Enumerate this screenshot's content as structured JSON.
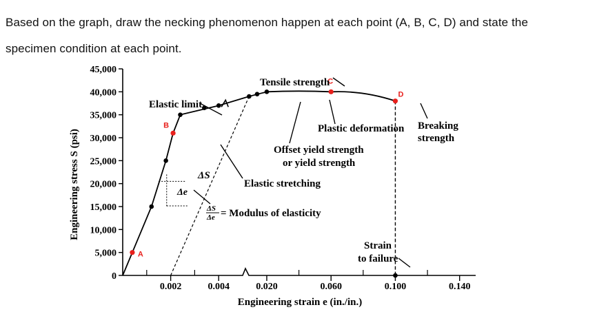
{
  "question": {
    "line1": "Based on the graph, draw the necking phenomenon happen at each point (A, B, C, D) and state the",
    "line2": "specimen condition at each point."
  },
  "chart_data": {
    "type": "line",
    "title": "",
    "xlabel": "Engineering strain e (in./in.)",
    "ylabel": "Engineering stress S (psi)",
    "y_ticks": [
      "0",
      "5,000",
      "10,000",
      "15,000",
      "20,000",
      "25,000",
      "30,000",
      "35,000",
      "40,000",
      "45,000"
    ],
    "ylim": [
      0,
      45000
    ],
    "x_axis_broken": true,
    "x_ticks_left": [
      "0.002",
      "0.004"
    ],
    "x_ticks_right": [
      "0.020",
      "0.060",
      "0.100",
      "0.140"
    ],
    "xlim_left": [
      0,
      0.005
    ],
    "xlim_right": [
      0.005,
      0.15
    ],
    "series": [
      {
        "points": [
          {
            "x": 0.0,
            "y": 0
          },
          {
            "x": 0.0004,
            "y": 5000
          },
          {
            "x": 0.0012,
            "y": 15000
          },
          {
            "x": 0.0018,
            "y": 25000
          },
          {
            "x": 0.0021,
            "y": 31000
          },
          {
            "x": 0.0024,
            "y": 35000
          },
          {
            "x": 0.004,
            "y": 37000
          },
          {
            "x": 0.009,
            "y": 39000
          },
          {
            "x": 0.02,
            "y": 40000
          },
          {
            "x": 0.06,
            "y": 40000
          },
          {
            "x": 0.1,
            "y": 38000
          },
          {
            "x": 0.1,
            "y": 0
          }
        ]
      }
    ],
    "markers_black": [
      {
        "x": 0.0012,
        "y": 15000
      },
      {
        "x": 0.0018,
        "y": 25000
      },
      {
        "x": 0.0024,
        "y": 35000
      },
      {
        "x": 0.0034,
        "y": 36500
      },
      {
        "x": 0.004,
        "y": 37000
      },
      {
        "x": 0.009,
        "y": 39000
      },
      {
        "x": 0.014,
        "y": 39500
      },
      {
        "x": 0.02,
        "y": 40000
      },
      {
        "x": 0.1,
        "y": 0
      }
    ],
    "markers_red": [
      {
        "label": "A",
        "x": 0.0004,
        "y": 5000
      },
      {
        "label": "B",
        "x": 0.0021,
        "y": 31000
      },
      {
        "label": "C",
        "x": 0.06,
        "y": 40000
      },
      {
        "label": "D",
        "x": 0.1,
        "y": 38000
      }
    ],
    "annotations": {
      "tensile_strength": "Tensile strength",
      "elastic_limit": "Elastic limit",
      "plastic_deformation": "Plastic deformation",
      "breaking_strength_1": "Breaking",
      "breaking_strength_2": "strength",
      "offset_yield_1": "Offset yield strength",
      "offset_yield_2": "or yield strength",
      "elastic_stretching": "Elastic stretching",
      "delta_s": "ΔS",
      "delta_e": "Δe",
      "modulus": "= Modulus of elasticity",
      "strain_failure_1": "Strain",
      "strain_failure_2": "to failure"
    },
    "colors": {
      "curve": "#000000",
      "highlight": "#e8201c"
    }
  }
}
